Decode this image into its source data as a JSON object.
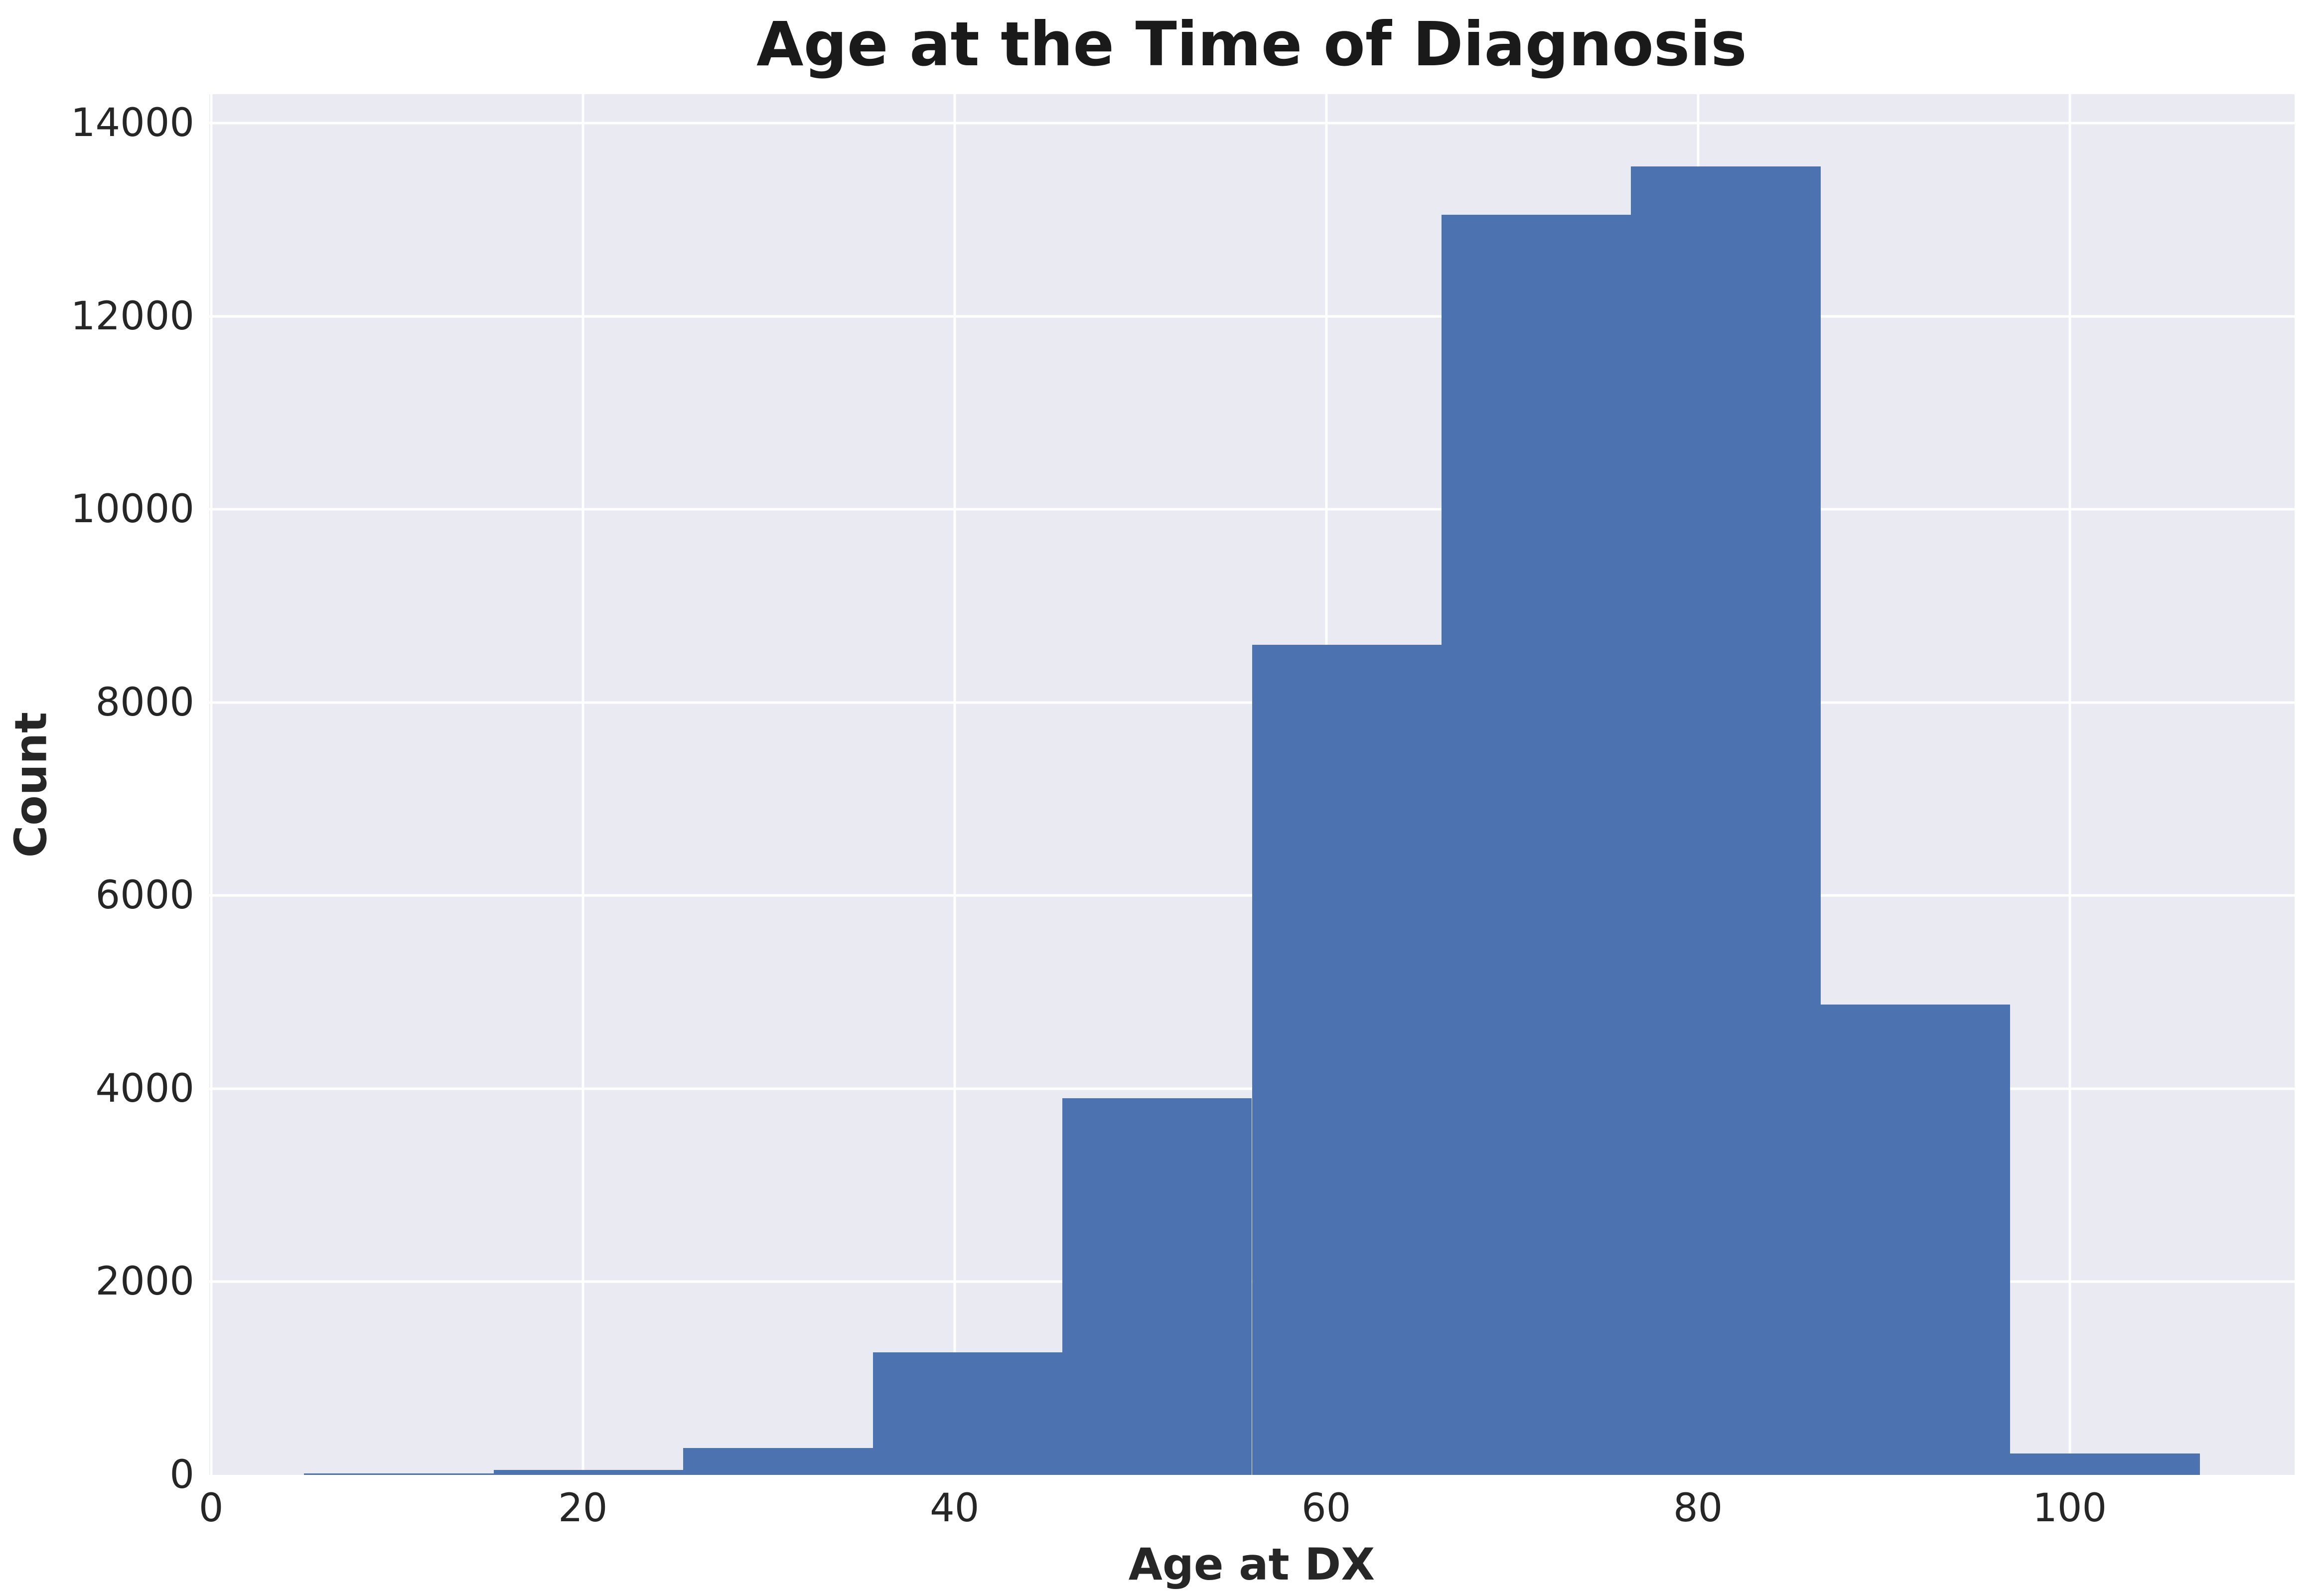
{
  "title": "Age at the Time of Diagnosis",
  "colors": {
    "bar_fill": "#4C72B0",
    "plot_background": "#EAEAF2",
    "gridline": "#FFFFFF",
    "tick_text": "#262626",
    "title_text": "#1A1A1A",
    "figure_background": "#FFFFFF"
  },
  "chart_data": {
    "type": "bar",
    "subtype": "histogram",
    "title": "Age at the Time of Diagnosis",
    "xlabel": "Age at DX",
    "ylabel": "Count",
    "bin_edges": [
      5.0,
      15.2,
      25.4,
      35.6,
      45.8,
      56.0,
      66.2,
      76.4,
      86.6,
      96.8,
      107.0
    ],
    "counts": [
      15,
      50,
      280,
      1270,
      3900,
      8600,
      13050,
      13550,
      4870,
      220
    ],
    "x_ticks": [
      0,
      20,
      40,
      60,
      80,
      100
    ],
    "y_ticks": [
      0,
      2000,
      4000,
      6000,
      8000,
      10000,
      12000,
      14000
    ],
    "xlim": [
      -0.1,
      112.1
    ],
    "ylim": [
      0,
      14300
    ],
    "grid": true,
    "legend": false,
    "series_name": "Age at DX"
  }
}
